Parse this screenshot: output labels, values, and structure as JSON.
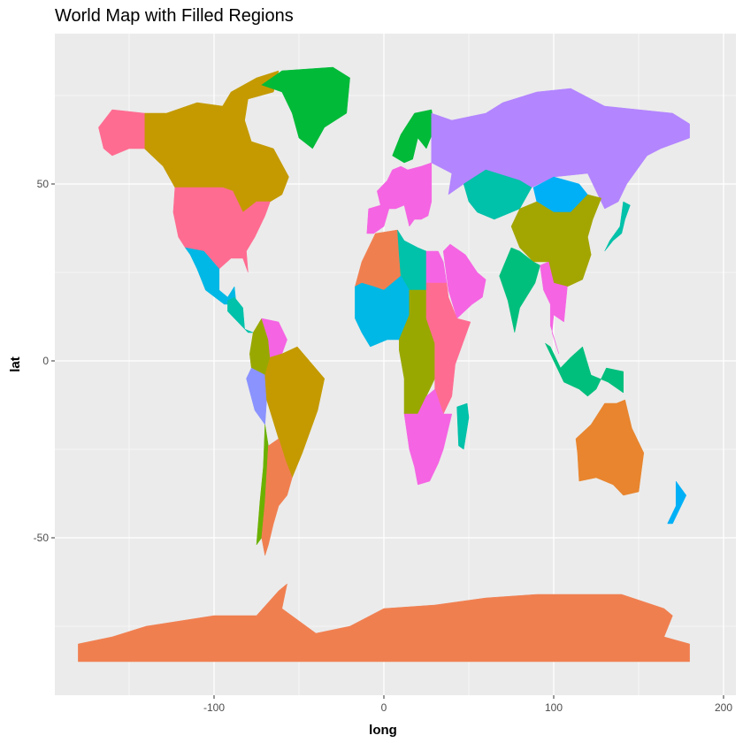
{
  "title": "World Map with Filled Regions",
  "chart_data": {
    "type": "map",
    "xlabel": "long",
    "ylabel": "lat",
    "x_ticks": [
      -100,
      0,
      100,
      200
    ],
    "y_ticks": [
      50,
      0,
      -50
    ],
    "xlim": [
      -198,
      210
    ],
    "ylim": [
      -95,
      93
    ],
    "grid": true,
    "legend": "none",
    "panel_background": "#EBEBEB",
    "grid_color": "#FFFFFF",
    "regions": [
      {
        "name": "Canada",
        "fill": "#C49A00"
      },
      {
        "name": "Alaska",
        "fill": "#FF6C91"
      },
      {
        "name": "USA",
        "fill": "#FF6C91"
      },
      {
        "name": "Greenland",
        "fill": "#00BA38"
      },
      {
        "name": "Mexico",
        "fill": "#00B8E5"
      },
      {
        "name": "Central America",
        "fill": "#00C1A9"
      },
      {
        "name": "Colombia",
        "fill": "#99A800"
      },
      {
        "name": "Venezuela",
        "fill": "#F564E3"
      },
      {
        "name": "Peru",
        "fill": "#8B93FF"
      },
      {
        "name": "Brazil",
        "fill": "#C49A00"
      },
      {
        "name": "Chile",
        "fill": "#6BB100"
      },
      {
        "name": "Argentina",
        "fill": "#F07F50"
      },
      {
        "name": "Scandinavia",
        "fill": "#00BA38"
      },
      {
        "name": "Europe",
        "fill": "#F564E3"
      },
      {
        "name": "Russia",
        "fill": "#B385FF"
      },
      {
        "name": "Kazakhstan",
        "fill": "#00C1A9"
      },
      {
        "name": "Mongolia",
        "fill": "#00B0F6"
      },
      {
        "name": "China",
        "fill": "#A3A500"
      },
      {
        "name": "Middle East",
        "fill": "#F564E3"
      },
      {
        "name": "India",
        "fill": "#00BF7D"
      },
      {
        "name": "Southeast Asia",
        "fill": "#F564E3"
      },
      {
        "name": "Indonesia",
        "fill": "#00BF7D"
      },
      {
        "name": "Japan",
        "fill": "#00C1A9"
      },
      {
        "name": "Algeria",
        "fill": "#F07F50"
      },
      {
        "name": "Libya",
        "fill": "#00C1A9"
      },
      {
        "name": "Egypt",
        "fill": "#F564E3"
      },
      {
        "name": "West Africa",
        "fill": "#00B8E5"
      },
      {
        "name": "Central Africa",
        "fill": "#99A800"
      },
      {
        "name": "East Africa",
        "fill": "#FF6C91"
      },
      {
        "name": "Southern Africa",
        "fill": "#F564E3"
      },
      {
        "name": "Madagascar",
        "fill": "#00C1A9"
      },
      {
        "name": "Australia",
        "fill": "#E8852E"
      },
      {
        "name": "New Zealand",
        "fill": "#00B0F6"
      },
      {
        "name": "Antarctica",
        "fill": "#F07F50"
      }
    ]
  }
}
